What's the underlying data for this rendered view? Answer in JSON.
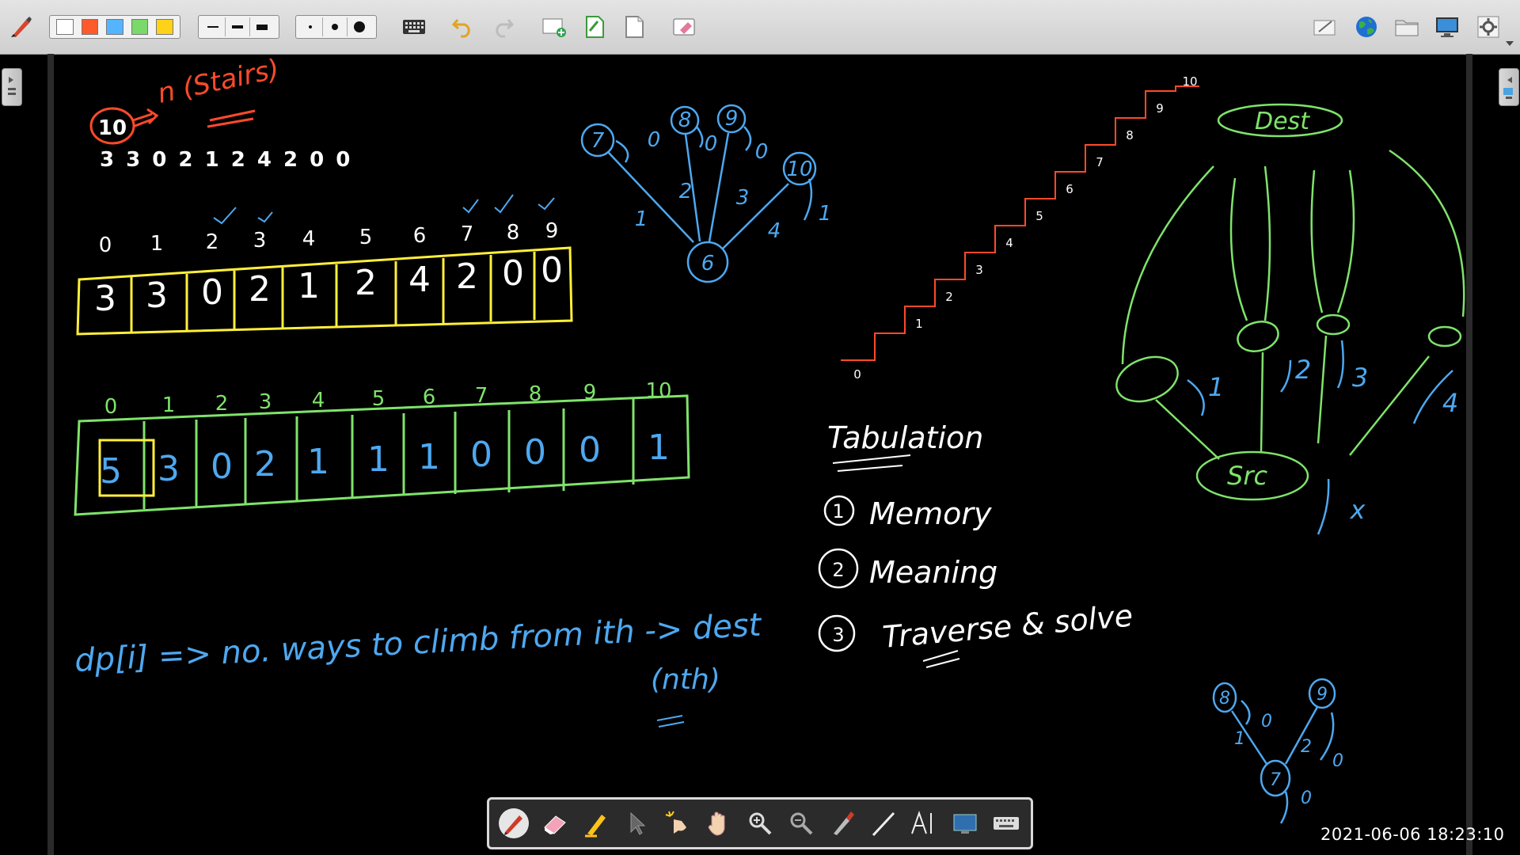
{
  "toolbar": {
    "colors": [
      "#ffffff",
      "#ff5a2b",
      "#55b4ff",
      "#7bd86a",
      "#ffd21a"
    ],
    "icons": [
      "pen-settings-icon",
      "color-palette",
      "line-thickness",
      "dot-size",
      "keyboard-icon",
      "undo-icon",
      "redo-icon",
      "add-page-icon",
      "green-page-icon",
      "blank-page-icon",
      "clear-icon",
      "edit-icon",
      "globe-icon",
      "folder-icon",
      "monitor-icon",
      "settings-icon"
    ]
  },
  "board": {
    "stairs_label": "n (Stairs)",
    "n_value": "10",
    "sequence": "3 3 0 2 1 2 4 2 0 0",
    "array1_indices": [
      "0",
      "1",
      "2",
      "3",
      "4",
      "5",
      "6",
      "7",
      "8",
      "9"
    ],
    "array1_values": [
      "3",
      "3",
      "0",
      "2",
      "1",
      "2",
      "4",
      "2",
      "0",
      "0"
    ],
    "array2_indices": [
      "0",
      "1",
      "2",
      "3",
      "4",
      "5",
      "6",
      "7",
      "8",
      "9",
      "10"
    ],
    "array2_values": [
      "5",
      "3",
      "0",
      "2",
      "1",
      "1",
      "1",
      "0",
      "0",
      "0",
      "1"
    ],
    "dp_definition": "dp[i] => no. ways to climb from ith -> dest",
    "dp_note": "(nth)",
    "tabulation_title": "Tabulation",
    "tabulation_steps": [
      "Memory",
      "Meaning",
      "Traverse & solve"
    ],
    "step_numbers": [
      "1",
      "2",
      "3"
    ],
    "graph1_nodes": [
      "7",
      "8",
      "9",
      "10",
      "6"
    ],
    "graph1_edges": [
      "0",
      "0",
      "0",
      "1",
      "2",
      "3",
      "4",
      "1"
    ],
    "stair_labels": [
      "0",
      "1",
      "2",
      "3",
      "4",
      "5",
      "6",
      "7",
      "8",
      "9",
      "10"
    ],
    "dest_label": "Dest",
    "src_label": "Src",
    "jumps": [
      "1",
      "2",
      "3",
      "4"
    ],
    "graph2_nodes": [
      "8",
      "9",
      "7"
    ],
    "graph2_edges": [
      "0",
      "1",
      "2",
      "0",
      "0"
    ],
    "colors": {
      "yellow": "#ffef3a",
      "green": "#7fe36b",
      "blue": "#4ea8f0",
      "red": "#ff4a2a",
      "white": "#ffffff"
    }
  },
  "palette": {
    "tools": [
      "pen-icon",
      "eraser-icon",
      "highlighter-icon",
      "pointer-icon",
      "magic-pointer-icon",
      "hand-icon",
      "zoom-in-icon",
      "zoom-out-icon",
      "brush-icon",
      "line-icon",
      "text-icon",
      "screen-icon",
      "keyboard-icon"
    ]
  },
  "status": {
    "timestamp": "2021-06-06  18:23:10"
  }
}
